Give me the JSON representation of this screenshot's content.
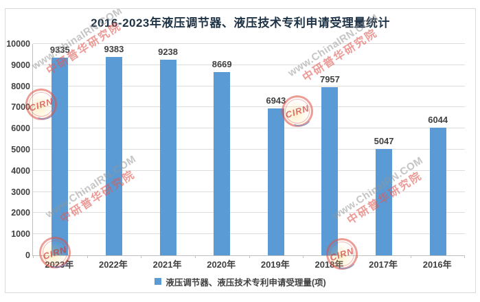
{
  "chart_data": {
    "type": "bar",
    "title": "2016-2023年液压调节器、液压技术专利申请受理量统计",
    "categories": [
      "2023年",
      "2022年",
      "2021年",
      "2020年",
      "2019年",
      "2018年",
      "2017年",
      "2016年"
    ],
    "values": [
      9335,
      9383,
      9238,
      8669,
      6943,
      7957,
      5047,
      6044
    ],
    "series_name": "液压调节器、液压技术专利申请受理量(项)",
    "xlabel": "",
    "ylabel": "",
    "ylim": [
      0,
      10000
    ],
    "ytick_step": 1000,
    "yticks": [
      0,
      1000,
      2000,
      3000,
      4000,
      5000,
      6000,
      7000,
      8000,
      9000,
      10000
    ],
    "grid": true,
    "data_labels": true,
    "legend_position": "bottom",
    "bar_color": "#5B9BD5"
  },
  "legend": {
    "label": "液压调节器、液压技术专利申请受理量(项)",
    "swatch_color": "#5B9BD5"
  },
  "watermark": {
    "url": "www.ChinaIRN.COM",
    "cn": "中研普华研究院",
    "stamp": "CIRN"
  },
  "colors": {
    "title": "#1e3246",
    "axis_text": "#404040",
    "gridline": "#dcdcdc",
    "axis_line": "#bfbfbf",
    "bar": "#5B9BD5"
  }
}
